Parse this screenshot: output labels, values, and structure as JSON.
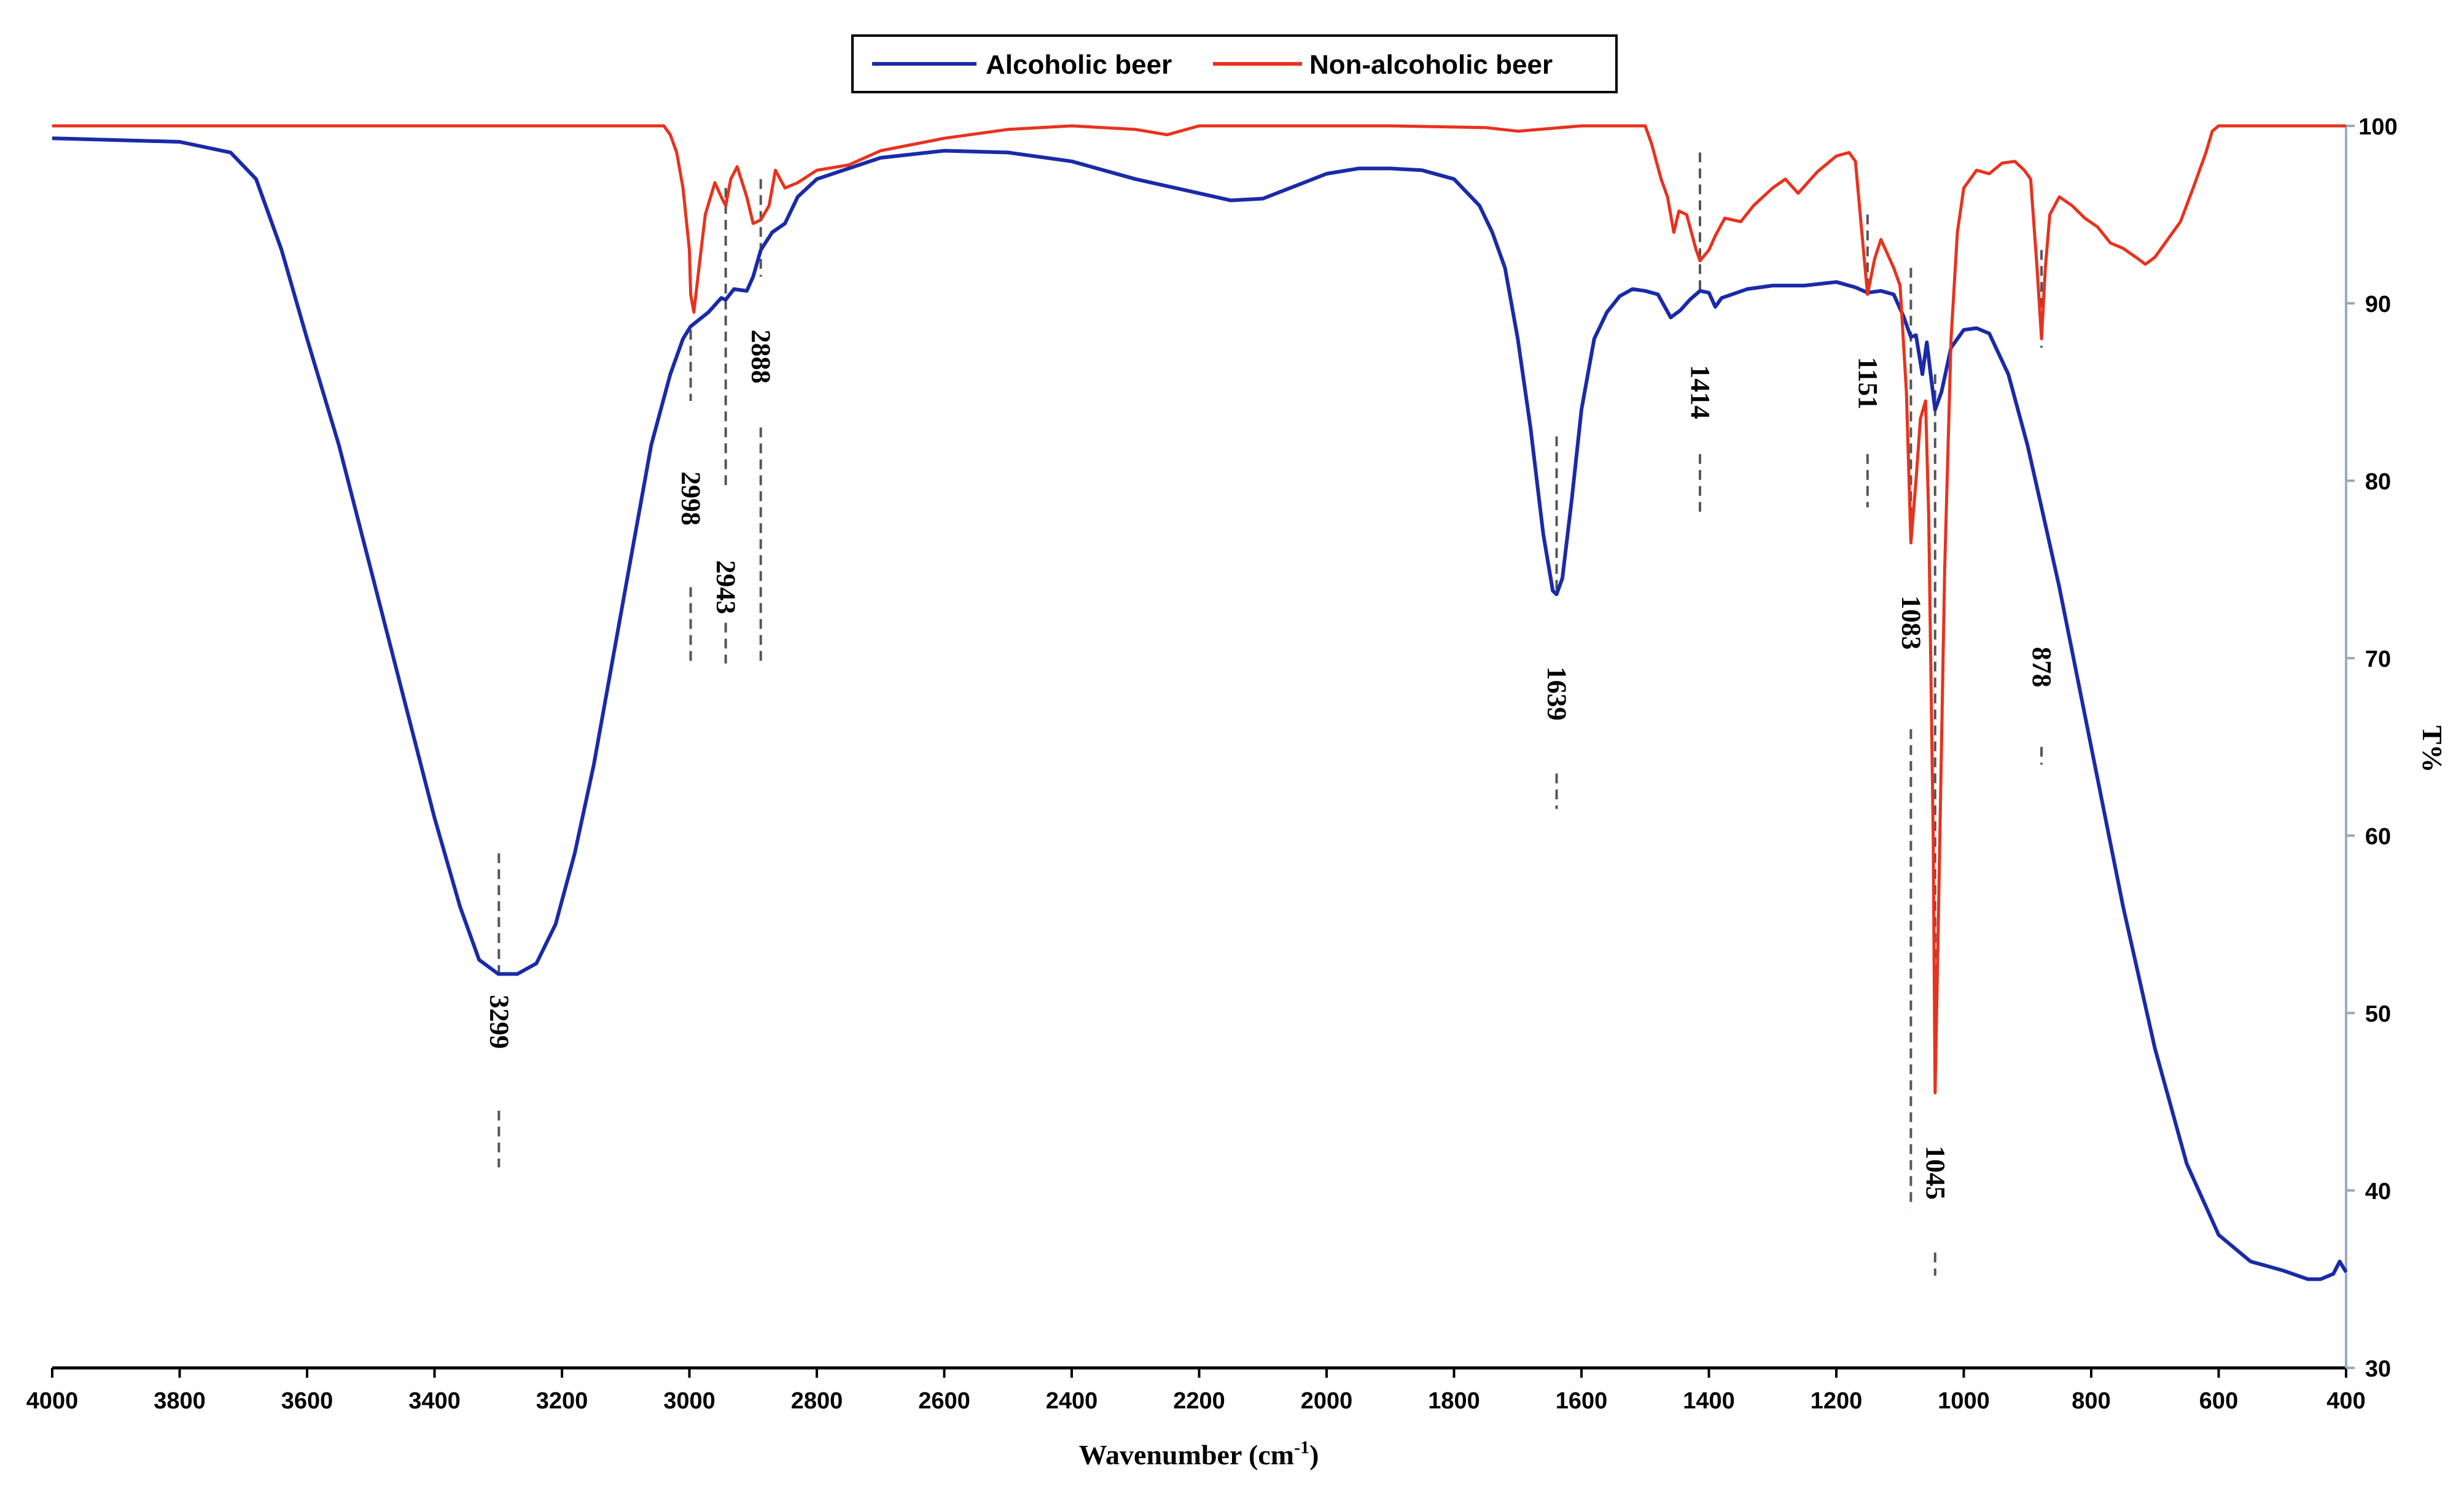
{
  "chart_data": {
    "type": "line",
    "title": "",
    "xlabel": "Wavenumber (cm",
    "xlabel_sup": "-1",
    "xlabel_close": ")",
    "ylabel": "T%",
    "xlim": [
      4000,
      400
    ],
    "ylim": [
      30,
      100
    ],
    "xticks": [
      "4000",
      "3800",
      "3600",
      "3400",
      "3200",
      "3000",
      "2800",
      "2600",
      "2400",
      "2200",
      "2000",
      "1800",
      "1600",
      "1400",
      "1200",
      "1000",
      "800",
      "600",
      "400"
    ],
    "yticks": [
      "30",
      "40",
      "50",
      "60",
      "70",
      "80",
      "90",
      "100"
    ],
    "legend": {
      "alcoholic": "Alcoholic beer",
      "nonalcoholic": "Non-alcoholic beer"
    },
    "colors": {
      "alcoholic": "#1a2aa8",
      "nonalcoholic": "#e8321e",
      "markers": "#555555"
    },
    "series": [
      {
        "name": "Alcoholic beer",
        "points": [
          [
            4000,
            99.3
          ],
          [
            3900,
            99.2
          ],
          [
            3800,
            99.1
          ],
          [
            3720,
            98.5
          ],
          [
            3680,
            97
          ],
          [
            3640,
            93
          ],
          [
            3600,
            88
          ],
          [
            3550,
            82
          ],
          [
            3500,
            75
          ],
          [
            3450,
            68
          ],
          [
            3400,
            61
          ],
          [
            3360,
            56
          ],
          [
            3330,
            53
          ],
          [
            3300,
            52.2
          ],
          [
            3270,
            52.2
          ],
          [
            3240,
            52.8
          ],
          [
            3210,
            55
          ],
          [
            3180,
            59
          ],
          [
            3150,
            64
          ],
          [
            3120,
            70
          ],
          [
            3090,
            76
          ],
          [
            3060,
            82
          ],
          [
            3030,
            86
          ],
          [
            3010,
            88
          ],
          [
            2998,
            88.7
          ],
          [
            2970,
            89.5
          ],
          [
            2950,
            90.3
          ],
          [
            2943,
            90.2
          ],
          [
            2930,
            90.8
          ],
          [
            2910,
            90.7
          ],
          [
            2900,
            91.5
          ],
          [
            2888,
            93
          ],
          [
            2870,
            94
          ],
          [
            2850,
            94.5
          ],
          [
            2830,
            96
          ],
          [
            2800,
            97
          ],
          [
            2700,
            98.2
          ],
          [
            2600,
            98.6
          ],
          [
            2500,
            98.5
          ],
          [
            2400,
            98
          ],
          [
            2300,
            97
          ],
          [
            2200,
            96.2
          ],
          [
            2150,
            95.8
          ],
          [
            2100,
            95.9
          ],
          [
            2050,
            96.6
          ],
          [
            2000,
            97.3
          ],
          [
            1950,
            97.6
          ],
          [
            1900,
            97.6
          ],
          [
            1850,
            97.5
          ],
          [
            1800,
            97
          ],
          [
            1760,
            95.5
          ],
          [
            1740,
            94
          ],
          [
            1720,
            92
          ],
          [
            1700,
            88
          ],
          [
            1680,
            83
          ],
          [
            1660,
            77
          ],
          [
            1645,
            73.8
          ],
          [
            1639,
            73.6
          ],
          [
            1630,
            74.5
          ],
          [
            1615,
            79
          ],
          [
            1600,
            84
          ],
          [
            1580,
            88
          ],
          [
            1560,
            89.5
          ],
          [
            1540,
            90.4
          ],
          [
            1520,
            90.8
          ],
          [
            1500,
            90.7
          ],
          [
            1480,
            90.5
          ],
          [
            1460,
            89.2
          ],
          [
            1445,
            89.6
          ],
          [
            1430,
            90.2
          ],
          [
            1414,
            90.7
          ],
          [
            1400,
            90.6
          ],
          [
            1390,
            89.8
          ],
          [
            1380,
            90.3
          ],
          [
            1340,
            90.8
          ],
          [
            1300,
            91
          ],
          [
            1250,
            91
          ],
          [
            1200,
            91.2
          ],
          [
            1170,
            90.9
          ],
          [
            1151,
            90.6
          ],
          [
            1130,
            90.7
          ],
          [
            1110,
            90.5
          ],
          [
            1095,
            89.3
          ],
          [
            1083,
            88.1
          ],
          [
            1075,
            88.2
          ],
          [
            1065,
            86
          ],
          [
            1058,
            87.8
          ],
          [
            1052,
            86
          ],
          [
            1045,
            84
          ],
          [
            1035,
            85
          ],
          [
            1020,
            87.5
          ],
          [
            1000,
            88.5
          ],
          [
            980,
            88.6
          ],
          [
            960,
            88.3
          ],
          [
            930,
            86
          ],
          [
            900,
            82
          ],
          [
            878,
            78.5
          ],
          [
            850,
            74
          ],
          [
            800,
            65
          ],
          [
            750,
            56
          ],
          [
            700,
            48
          ],
          [
            650,
            41.5
          ],
          [
            600,
            37.5
          ],
          [
            550,
            36
          ],
          [
            500,
            35.5
          ],
          [
            460,
            35
          ],
          [
            440,
            35
          ],
          [
            420,
            35.3
          ],
          [
            410,
            36
          ],
          [
            400,
            35.4
          ]
        ]
      },
      {
        "name": "Non-alcoholic beer",
        "points": [
          [
            4000,
            100
          ],
          [
            3100,
            100
          ],
          [
            3040,
            100
          ],
          [
            3030,
            99.5
          ],
          [
            3020,
            98.5
          ],
          [
            3010,
            96.5
          ],
          [
            3000,
            93
          ],
          [
            2998,
            90.5
          ],
          [
            2993,
            89.5
          ],
          [
            2985,
            92
          ],
          [
            2975,
            95
          ],
          [
            2960,
            96.8
          ],
          [
            2950,
            96
          ],
          [
            2943,
            95.5
          ],
          [
            2935,
            97
          ],
          [
            2925,
            97.7
          ],
          [
            2910,
            96
          ],
          [
            2900,
            94.5
          ],
          [
            2888,
            94.7
          ],
          [
            2875,
            95.5
          ],
          [
            2865,
            97.5
          ],
          [
            2850,
            96.5
          ],
          [
            2830,
            96.8
          ],
          [
            2800,
            97.5
          ],
          [
            2750,
            97.8
          ],
          [
            2700,
            98.6
          ],
          [
            2600,
            99.3
          ],
          [
            2500,
            99.8
          ],
          [
            2400,
            100
          ],
          [
            2300,
            99.8
          ],
          [
            2250,
            99.5
          ],
          [
            2200,
            100
          ],
          [
            2100,
            100
          ],
          [
            2000,
            100
          ],
          [
            1900,
            100
          ],
          [
            1750,
            99.9
          ],
          [
            1700,
            99.7
          ],
          [
            1600,
            100
          ],
          [
            1500,
            100
          ],
          [
            1490,
            99
          ],
          [
            1475,
            97
          ],
          [
            1465,
            96
          ],
          [
            1455,
            94
          ],
          [
            1447,
            95.2
          ],
          [
            1435,
            95
          ],
          [
            1420,
            93
          ],
          [
            1414,
            92.4
          ],
          [
            1400,
            93
          ],
          [
            1390,
            93.8
          ],
          [
            1375,
            94.8
          ],
          [
            1350,
            94.6
          ],
          [
            1330,
            95.5
          ],
          [
            1300,
            96.5
          ],
          [
            1280,
            97
          ],
          [
            1260,
            96.2
          ],
          [
            1230,
            97.4
          ],
          [
            1200,
            98.3
          ],
          [
            1180,
            98.5
          ],
          [
            1170,
            98
          ],
          [
            1160,
            94
          ],
          [
            1151,
            90.5
          ],
          [
            1140,
            92.5
          ],
          [
            1130,
            93.6
          ],
          [
            1120,
            92.8
          ],
          [
            1110,
            92
          ],
          [
            1100,
            91
          ],
          [
            1090,
            85
          ],
          [
            1083,
            76.5
          ],
          [
            1075,
            80
          ],
          [
            1068,
            83.5
          ],
          [
            1060,
            84.5
          ],
          [
            1055,
            78
          ],
          [
            1048,
            60
          ],
          [
            1045,
            45.5
          ],
          [
            1040,
            55
          ],
          [
            1030,
            75
          ],
          [
            1020,
            88
          ],
          [
            1010,
            94
          ],
          [
            1000,
            96.5
          ],
          [
            980,
            97.5
          ],
          [
            960,
            97.3
          ],
          [
            940,
            97.9
          ],
          [
            920,
            98
          ],
          [
            905,
            97.5
          ],
          [
            895,
            97
          ],
          [
            885,
            92
          ],
          [
            878,
            88
          ],
          [
            872,
            92
          ],
          [
            865,
            95
          ],
          [
            850,
            96
          ],
          [
            830,
            95.5
          ],
          [
            810,
            94.8
          ],
          [
            790,
            94.3
          ],
          [
            770,
            93.4
          ],
          [
            750,
            93.1
          ],
          [
            730,
            92.6
          ],
          [
            715,
            92.2
          ],
          [
            700,
            92.6
          ],
          [
            680,
            93.6
          ],
          [
            660,
            94.6
          ],
          [
            640,
            96.5
          ],
          [
            620,
            98.5
          ],
          [
            610,
            99.7
          ],
          [
            600,
            100
          ],
          [
            500,
            100
          ],
          [
            400,
            100
          ]
        ]
      }
    ],
    "peak_labels": [
      {
        "text": "3299",
        "x": 3299
      },
      {
        "text": "2998",
        "x": 2998
      },
      {
        "text": "2943",
        "x": 2943
      },
      {
        "text": "2888",
        "x": 2888
      },
      {
        "text": "1639",
        "x": 1639
      },
      {
        "text": "1414",
        "x": 1414
      },
      {
        "text": "1151",
        "x": 1151
      },
      {
        "text": "1083",
        "x": 1083
      },
      {
        "text": "1045",
        "x": 1045
      },
      {
        "text": "878",
        "x": 878
      }
    ]
  }
}
